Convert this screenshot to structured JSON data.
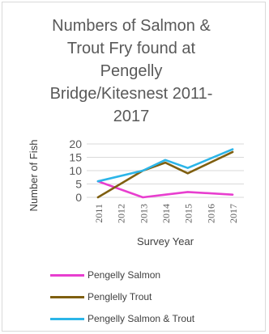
{
  "chart_data": {
    "type": "line",
    "title": "Numbers of Salmon & Trout Fry found at Pengelly Bridge/Kitesnest 2011-2017",
    "title_lines": [
      "Numbers of Salmon &",
      "Trout Fry found at",
      "Pengelly",
      "Bridge/Kitesnest 2011-",
      "2017"
    ],
    "xlabel": "Survey Year",
    "ylabel": "Number of Fish",
    "categories": [
      "2011",
      "2012",
      "2013",
      "2014",
      "2015",
      "2016",
      "2017"
    ],
    "ylim": [
      0,
      20
    ],
    "yticks": [
      "0",
      "5",
      "10",
      "15",
      "20"
    ],
    "grid": true,
    "legend_position": "bottom",
    "series": [
      {
        "name": "Pengelly Salmon",
        "color": "#e83ecf",
        "values": [
          6,
          null,
          0,
          1,
          2,
          null,
          1
        ]
      },
      {
        "name": "Penglelly Trout",
        "color": "#7f5f10",
        "values": [
          0,
          null,
          10,
          13,
          9,
          null,
          17
        ]
      },
      {
        "name": "Pengelly Salmon & Trout",
        "color": "#2cb5e8",
        "values": [
          6,
          null,
          10,
          14,
          11,
          null,
          18
        ]
      }
    ]
  }
}
